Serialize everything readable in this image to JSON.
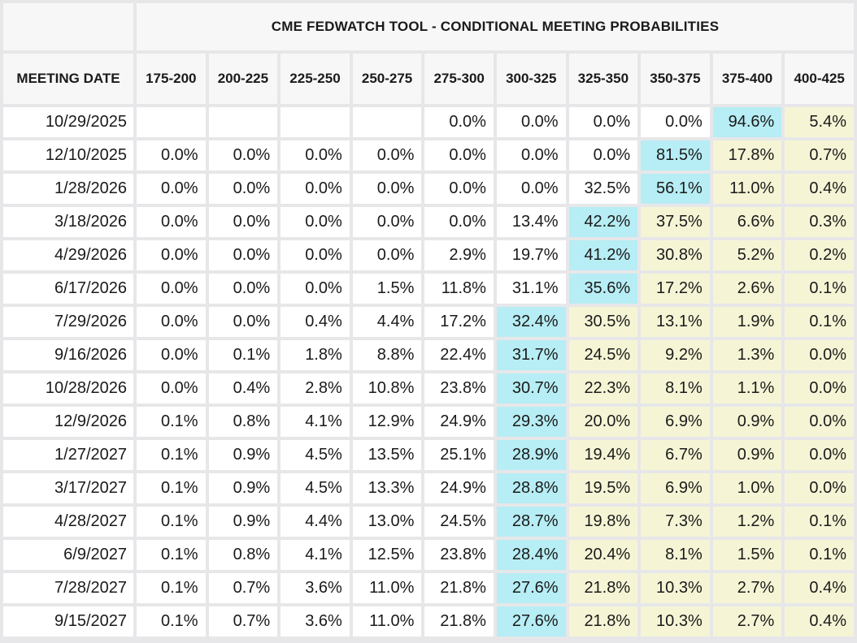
{
  "colors": {
    "grid_background": "#e7e7e9",
    "panel_background": "#f7f7f7",
    "cell_background": "#ffffff",
    "max_highlight": "#b7edf4",
    "tail_highlight": "#f5f5d6",
    "text": "#1a1a1a"
  },
  "chart_data": {
    "type": "table",
    "title": "CME FEDWATCH TOOL - CONDITIONAL MEETING PROBABILITIES",
    "row_header_label": "MEETING DATE",
    "columns": [
      "175-200",
      "200-225",
      "225-250",
      "250-275",
      "275-300",
      "300-325",
      "325-350",
      "350-375",
      "375-400",
      "400-425"
    ],
    "highlight_rule": "cell at max_index is cyan (modal probability); cells right of max_index are cream; blank cells and cells left of max are white",
    "rows": [
      {
        "date": "10/29/2025",
        "values": [
          "",
          "",
          "",
          "",
          "0.0%",
          "0.0%",
          "0.0%",
          "0.0%",
          "94.6%",
          "5.4%"
        ],
        "max_index": 8
      },
      {
        "date": "12/10/2025",
        "values": [
          "0.0%",
          "0.0%",
          "0.0%",
          "0.0%",
          "0.0%",
          "0.0%",
          "0.0%",
          "81.5%",
          "17.8%",
          "0.7%"
        ],
        "max_index": 7
      },
      {
        "date": "1/28/2026",
        "values": [
          "0.0%",
          "0.0%",
          "0.0%",
          "0.0%",
          "0.0%",
          "0.0%",
          "32.5%",
          "56.1%",
          "11.0%",
          "0.4%"
        ],
        "max_index": 7
      },
      {
        "date": "3/18/2026",
        "values": [
          "0.0%",
          "0.0%",
          "0.0%",
          "0.0%",
          "0.0%",
          "13.4%",
          "42.2%",
          "37.5%",
          "6.6%",
          "0.3%"
        ],
        "max_index": 6
      },
      {
        "date": "4/29/2026",
        "values": [
          "0.0%",
          "0.0%",
          "0.0%",
          "0.0%",
          "2.9%",
          "19.7%",
          "41.2%",
          "30.8%",
          "5.2%",
          "0.2%"
        ],
        "max_index": 6
      },
      {
        "date": "6/17/2026",
        "values": [
          "0.0%",
          "0.0%",
          "0.0%",
          "1.5%",
          "11.8%",
          "31.1%",
          "35.6%",
          "17.2%",
          "2.6%",
          "0.1%"
        ],
        "max_index": 6
      },
      {
        "date": "7/29/2026",
        "values": [
          "0.0%",
          "0.0%",
          "0.4%",
          "4.4%",
          "17.2%",
          "32.4%",
          "30.5%",
          "13.1%",
          "1.9%",
          "0.1%"
        ],
        "max_index": 5
      },
      {
        "date": "9/16/2026",
        "values": [
          "0.0%",
          "0.1%",
          "1.8%",
          "8.8%",
          "22.4%",
          "31.7%",
          "24.5%",
          "9.2%",
          "1.3%",
          "0.0%"
        ],
        "max_index": 5
      },
      {
        "date": "10/28/2026",
        "values": [
          "0.0%",
          "0.4%",
          "2.8%",
          "10.8%",
          "23.8%",
          "30.7%",
          "22.3%",
          "8.1%",
          "1.1%",
          "0.0%"
        ],
        "max_index": 5
      },
      {
        "date": "12/9/2026",
        "values": [
          "0.1%",
          "0.8%",
          "4.1%",
          "12.9%",
          "24.9%",
          "29.3%",
          "20.0%",
          "6.9%",
          "0.9%",
          "0.0%"
        ],
        "max_index": 5
      },
      {
        "date": "1/27/2027",
        "values": [
          "0.1%",
          "0.9%",
          "4.5%",
          "13.5%",
          "25.1%",
          "28.9%",
          "19.4%",
          "6.7%",
          "0.9%",
          "0.0%"
        ],
        "max_index": 5
      },
      {
        "date": "3/17/2027",
        "values": [
          "0.1%",
          "0.9%",
          "4.5%",
          "13.3%",
          "24.9%",
          "28.8%",
          "19.5%",
          "6.9%",
          "1.0%",
          "0.0%"
        ],
        "max_index": 5
      },
      {
        "date": "4/28/2027",
        "values": [
          "0.1%",
          "0.9%",
          "4.4%",
          "13.0%",
          "24.5%",
          "28.7%",
          "19.8%",
          "7.3%",
          "1.2%",
          "0.1%"
        ],
        "max_index": 5
      },
      {
        "date": "6/9/2027",
        "values": [
          "0.1%",
          "0.8%",
          "4.1%",
          "12.5%",
          "23.8%",
          "28.4%",
          "20.4%",
          "8.1%",
          "1.5%",
          "0.1%"
        ],
        "max_index": 5
      },
      {
        "date": "7/28/2027",
        "values": [
          "0.1%",
          "0.7%",
          "3.6%",
          "11.0%",
          "21.8%",
          "27.6%",
          "21.8%",
          "10.3%",
          "2.7%",
          "0.4%"
        ],
        "max_index": 5
      },
      {
        "date": "9/15/2027",
        "values": [
          "0.1%",
          "0.7%",
          "3.6%",
          "11.0%",
          "21.8%",
          "27.6%",
          "21.8%",
          "10.3%",
          "2.7%",
          "0.4%"
        ],
        "max_index": 5
      }
    ]
  }
}
